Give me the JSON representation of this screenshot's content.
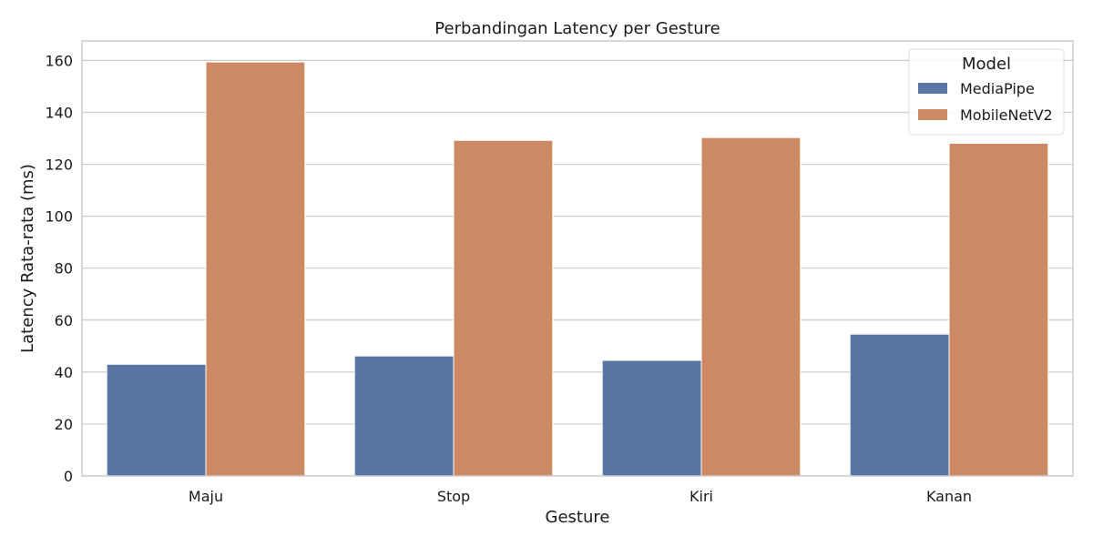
{
  "chart_data": {
    "type": "bar",
    "title": "Perbandingan Latency per Gesture",
    "xlabel": "Gesture",
    "ylabel": "Latency Rata-rata (ms)",
    "categories": [
      "Maju",
      "Stop",
      "Kiri",
      "Kanan"
    ],
    "series": [
      {
        "name": "MediaPipe",
        "color": "#5975a4",
        "values": [
          43.0,
          46.2,
          44.5,
          54.6
        ]
      },
      {
        "name": "MobileNetV2",
        "color": "#cc8963",
        "values": [
          159.4,
          129.2,
          130.3,
          128.1
        ]
      }
    ],
    "ylim": [
      0,
      167.5
    ],
    "yticks": [
      0,
      20,
      40,
      60,
      80,
      100,
      120,
      140,
      160
    ],
    "grid": true,
    "legend": {
      "title": "Model",
      "position": "top-right"
    }
  }
}
